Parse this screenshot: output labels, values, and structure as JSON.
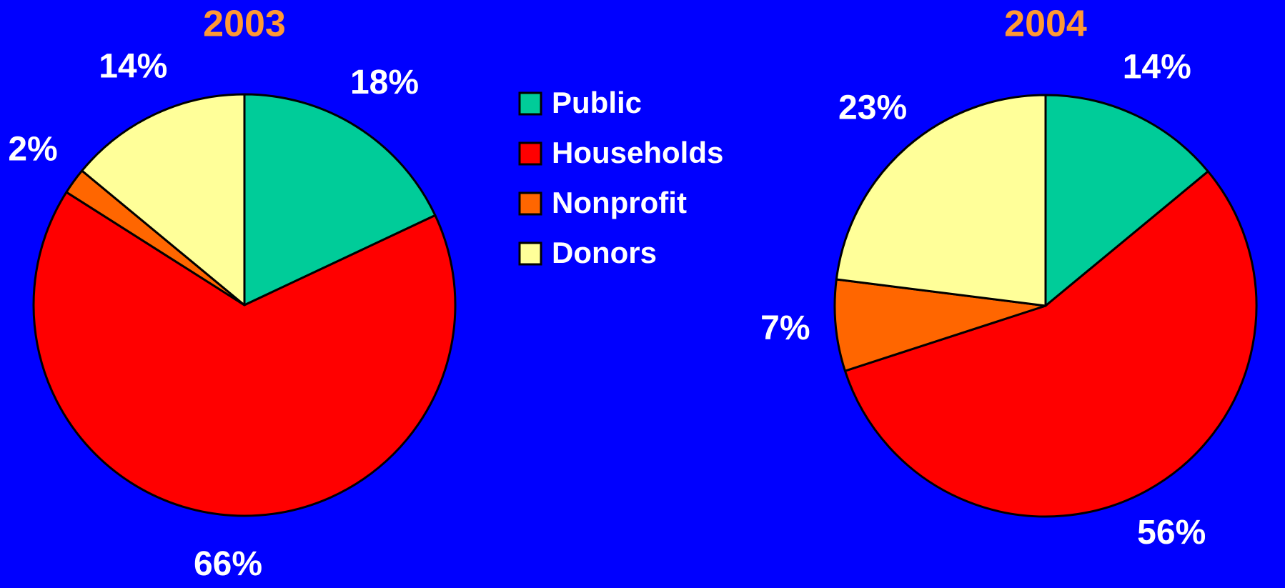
{
  "legend": {
    "categories": [
      "Public",
      "Households",
      "Nonprofit",
      "Donors"
    ],
    "colors": [
      "#00cc99",
      "#ff0000",
      "#ff6600",
      "#ffff99"
    ]
  },
  "chart_data": [
    {
      "type": "pie",
      "title": "2003",
      "values": [
        18,
        66,
        2,
        14
      ],
      "value_labels": [
        "18%",
        "66%",
        "2%",
        "14%"
      ]
    },
    {
      "type": "pie",
      "title": "2004",
      "values": [
        14,
        56,
        7,
        23
      ],
      "value_labels": [
        "14%",
        "56%",
        "7%",
        "23%"
      ]
    }
  ]
}
